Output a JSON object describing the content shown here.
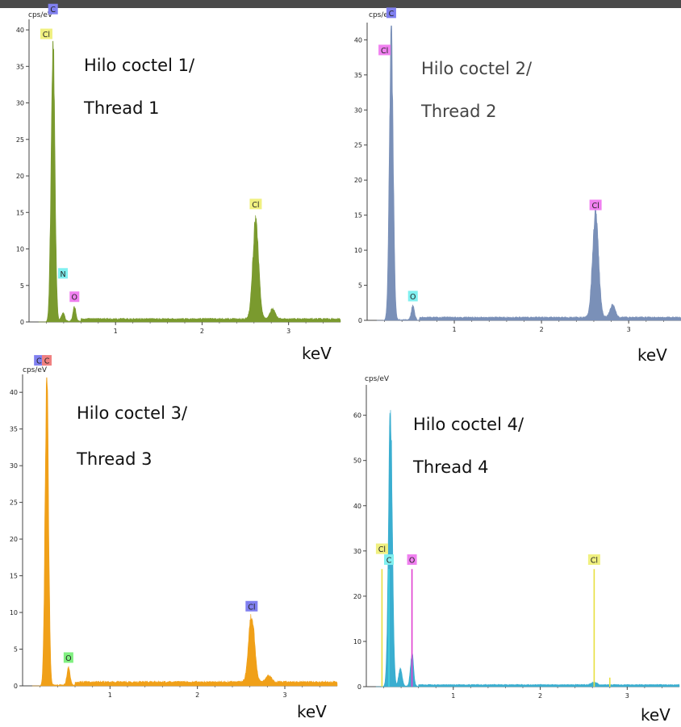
{
  "chart_data": [
    {
      "type": "area",
      "title_line1": "Hilo coctel 1/",
      "title_line2": "Thread 1",
      "y_unit": "cps/eV",
      "x_unit": "keV",
      "color": "#7a9a2e",
      "xlim": [
        0,
        3.6
      ],
      "ylim": [
        0,
        41
      ],
      "yticks": [
        0,
        5,
        10,
        15,
        20,
        25,
        30,
        35,
        40
      ],
      "xticks": [
        1,
        2,
        3
      ],
      "peaks": [
        {
          "x": 0.277,
          "y": 39,
          "w": 0.022
        },
        {
          "x": 0.392,
          "y": 1.2,
          "w": 0.02
        },
        {
          "x": 0.525,
          "y": 2.0,
          "w": 0.018
        },
        {
          "x": 2.62,
          "y": 13.5,
          "w": 0.034
        },
        {
          "x": 2.815,
          "y": 1.4,
          "w": 0.03
        }
      ],
      "baseline": 0.4,
      "labels": [
        {
          "text": "C",
          "x": 0.277,
          "y": 42.8,
          "bg": "#8080f0"
        },
        {
          "text": "Cl",
          "x": 0.2,
          "y": 39.4,
          "bg": "#f0f080"
        },
        {
          "text": "N",
          "x": 0.392,
          "y": 6.6,
          "bg": "#80f0f0"
        },
        {
          "text": "O",
          "x": 0.525,
          "y": 3.4,
          "bg": "#f080f0"
        },
        {
          "text": "Cl",
          "x": 2.62,
          "y": 16.1,
          "bg": "#f0f080"
        }
      ]
    },
    {
      "type": "area",
      "title_line1": "Hilo coctel 2/",
      "title_line2": "Thread 2",
      "y_unit": "cps/eV",
      "x_unit": "keV",
      "color": "#7a90b8",
      "xlim": [
        0,
        3.6
      ],
      "ylim": [
        0,
        42
      ],
      "yticks": [
        0,
        5,
        10,
        15,
        20,
        25,
        30,
        35,
        40
      ],
      "xticks": [
        1,
        2,
        3
      ],
      "peaks": [
        {
          "x": 0.277,
          "y": 41,
          "w": 0.022
        },
        {
          "x": 0.525,
          "y": 2.0,
          "w": 0.018
        },
        {
          "x": 2.62,
          "y": 15.2,
          "w": 0.034
        },
        {
          "x": 2.815,
          "y": 1.8,
          "w": 0.03
        }
      ],
      "baseline": 0.4,
      "labels": [
        {
          "text": "C",
          "x": 0.277,
          "y": 43.8,
          "bg": "#8080f0"
        },
        {
          "text": "Cl",
          "x": 0.2,
          "y": 38.5,
          "bg": "#f080f0"
        },
        {
          "text": "O",
          "x": 0.525,
          "y": 3.4,
          "bg": "#80f0f0"
        },
        {
          "text": "Cl",
          "x": 2.62,
          "y": 16.4,
          "bg": "#f080f0"
        }
      ]
    },
    {
      "type": "area",
      "title_line1": "Hilo coctel 3/",
      "title_line2": "Thread 3",
      "y_unit": "cps/eV",
      "x_unit": "keV",
      "color": "#f0a018",
      "xlim": [
        0,
        3.6
      ],
      "ylim": [
        0,
        42
      ],
      "yticks": [
        0,
        5,
        10,
        15,
        20,
        25,
        30,
        35,
        40
      ],
      "xticks": [
        1,
        2,
        3
      ],
      "peaks": [
        {
          "x": 0.277,
          "y": 42,
          "w": 0.02
        },
        {
          "x": 0.525,
          "y": 2.4,
          "w": 0.018
        },
        {
          "x": 2.62,
          "y": 9.2,
          "w": 0.034
        },
        {
          "x": 2.815,
          "y": 0.9,
          "w": 0.03
        }
      ],
      "baseline": 0.5,
      "labels": [
        {
          "text": "Cl",
          "x": 0.2,
          "y": 44.3,
          "bg": "#8080f0"
        },
        {
          "text": "C",
          "x": 0.277,
          "y": 44.3,
          "bg": "#f08080"
        },
        {
          "text": "O",
          "x": 0.525,
          "y": 3.8,
          "bg": "#80f080"
        },
        {
          "text": "Cl",
          "x": 2.62,
          "y": 10.8,
          "bg": "#8080f0"
        }
      ]
    },
    {
      "type": "area",
      "title_line1": "Hilo coctel 4/",
      "title_line2": "Thread 4",
      "y_unit": "cps/eV",
      "x_unit": "keV",
      "color": "#3aaed0",
      "xlim": [
        0,
        3.6
      ],
      "ylim": [
        0,
        66
      ],
      "yticks": [
        0,
        10,
        20,
        30,
        40,
        50,
        60
      ],
      "xticks": [
        1,
        2,
        3
      ],
      "peaks": [
        {
          "x": 0.277,
          "y": 62,
          "w": 0.022
        },
        {
          "x": 0.392,
          "y": 4.0,
          "w": 0.02
        },
        {
          "x": 0.525,
          "y": 7.2,
          "w": 0.018
        },
        {
          "x": 2.62,
          "y": 0.6,
          "w": 0.03
        }
      ],
      "baseline": 0.4,
      "lines": [
        {
          "x": 0.18,
          "y": 26,
          "color": "#e8e040"
        },
        {
          "x": 0.26,
          "y": 26,
          "color": "#40d0e0"
        },
        {
          "x": 0.525,
          "y": 26,
          "color": "#e040d0"
        },
        {
          "x": 2.62,
          "y": 26,
          "color": "#e8e040"
        },
        {
          "x": 2.8,
          "y": 2,
          "color": "#e8e040"
        }
      ],
      "labels": [
        {
          "text": "Cl",
          "x": 0.18,
          "y": 30.4,
          "bg": "#f0f080"
        },
        {
          "text": "C",
          "x": 0.26,
          "y": 28.0,
          "bg": "#80f0f0"
        },
        {
          "text": "O",
          "x": 0.525,
          "y": 28.0,
          "bg": "#f080f0"
        },
        {
          "text": "Cl",
          "x": 2.62,
          "y": 28.0,
          "bg": "#f0f080"
        }
      ]
    }
  ]
}
